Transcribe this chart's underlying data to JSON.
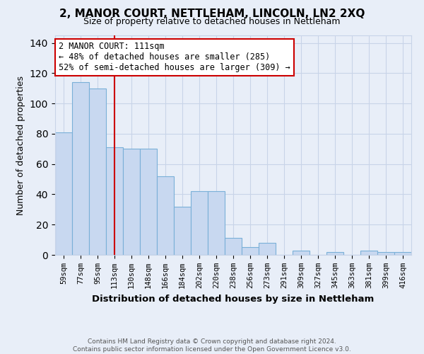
{
  "title": "2, MANOR COURT, NETTLEHAM, LINCOLN, LN2 2XQ",
  "subtitle": "Size of property relative to detached houses in Nettleham",
  "xlabel": "Distribution of detached houses by size in Nettleham",
  "ylabel": "Number of detached properties",
  "categories": [
    "59sqm",
    "77sqm",
    "95sqm",
    "113sqm",
    "130sqm",
    "148sqm",
    "166sqm",
    "184sqm",
    "202sqm",
    "220sqm",
    "238sqm",
    "256sqm",
    "273sqm",
    "291sqm",
    "309sqm",
    "327sqm",
    "345sqm",
    "363sqm",
    "381sqm",
    "399sqm",
    "416sqm"
  ],
  "values": [
    81,
    114,
    110,
    71,
    70,
    70,
    52,
    32,
    42,
    42,
    11,
    5,
    8,
    0,
    3,
    0,
    2,
    0,
    3,
    2,
    2
  ],
  "bar_color": "#c8d8f0",
  "bar_edge_color": "#7ab0d8",
  "vline_x_index": 3,
  "vline_color": "#cc0000",
  "annotation_text": "2 MANOR COURT: 111sqm\n← 48% of detached houses are smaller (285)\n52% of semi-detached houses are larger (309) →",
  "annotation_box_color": "#ffffff",
  "annotation_box_edge_color": "#cc0000",
  "ylim": [
    0,
    145
  ],
  "yticks": [
    0,
    20,
    40,
    60,
    80,
    100,
    120,
    140
  ],
  "grid_color": "#c8d4e8",
  "background_color": "#e8eef8",
  "footer_line1": "Contains HM Land Registry data © Crown copyright and database right 2024.",
  "footer_line2": "Contains public sector information licensed under the Open Government Licence v3.0."
}
